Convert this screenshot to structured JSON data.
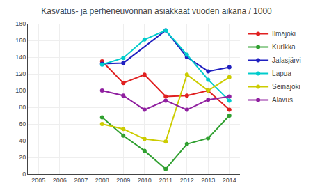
{
  "chart_data": {
    "type": "line",
    "title": "Kasvatus- ja perheneuvonnan asiakkaat vuoden aikana / 1000",
    "x": [
      2005,
      2006,
      2007,
      2008,
      2009,
      2010,
      2011,
      2012,
      2013,
      2014
    ],
    "series": [
      {
        "name": "Ilmajoki",
        "color": "#e02020",
        "values": [
          null,
          null,
          null,
          135,
          109,
          119,
          93,
          94,
          100,
          77
        ]
      },
      {
        "name": "Kurikka",
        "color": "#30a030",
        "values": [
          null,
          null,
          null,
          68,
          46,
          28,
          6,
          36,
          43,
          70
        ]
      },
      {
        "name": "Jalasjärvi",
        "color": "#2020c0",
        "values": [
          null,
          null,
          null,
          132,
          133,
          null,
          172,
          140,
          123,
          128
        ]
      },
      {
        "name": "Lapua",
        "color": "#00cccc",
        "values": [
          null,
          null,
          null,
          131,
          139,
          161,
          172,
          143,
          113,
          88
        ]
      },
      {
        "name": "Seinäjoki",
        "color": "#cccc00",
        "values": [
          null,
          null,
          null,
          60,
          54,
          42,
          39,
          119,
          100,
          116
        ]
      },
      {
        "name": "Alavus",
        "color": "#9020a0",
        "values": [
          null,
          null,
          null,
          100,
          94,
          77,
          88,
          77,
          89,
          93
        ]
      }
    ],
    "xlim": [
      2004.5,
      2014.5
    ],
    "xticks": [
      2005,
      2006,
      2007,
      2008,
      2009,
      2010,
      2011,
      2012,
      2013,
      2014
    ],
    "ylim": [
      0,
      180
    ],
    "yticks": [
      0,
      20,
      40,
      60,
      80,
      100,
      120,
      140,
      160,
      180
    ],
    "marker": "circle",
    "grid": true,
    "legend": "upper right"
  }
}
